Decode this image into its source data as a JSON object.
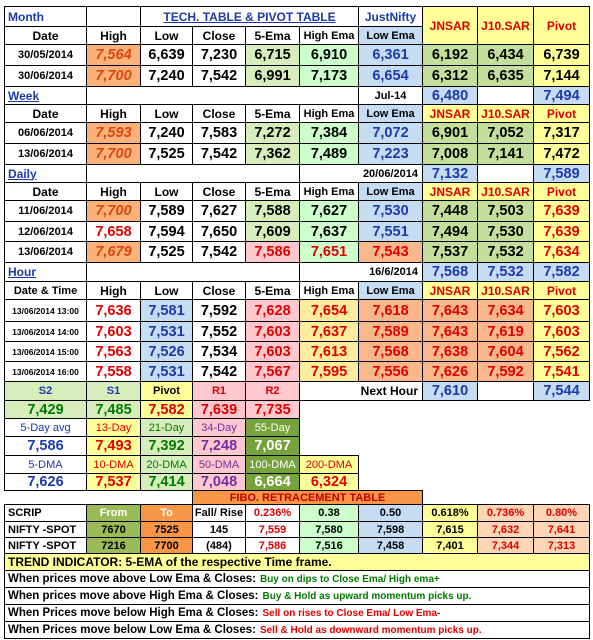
{
  "rows": [
    [
      "Month",
      "TECH. TABLE  &  PIVOT TABLE",
      "JustNifty",
      "JNSAR",
      "J10.SAR",
      "Pivot"
    ],
    [
      "Date",
      "High",
      "Low",
      "Close",
      "5-Ema",
      "High Ema",
      "Low Ema"
    ],
    [
      "30/05/2014",
      "7,564",
      "6,639",
      "7,230",
      "6,715",
      "6,910",
      "6,361",
      "6,192",
      "6,434",
      "6,739"
    ],
    [
      "30/06/2014",
      "7,700",
      "7,240",
      "7,542",
      "6,991",
      "7,173",
      "6,654",
      "6,312",
      "6,635",
      "7,144"
    ],
    [
      "Week",
      "Jul-14",
      "6,480",
      "7,494"
    ],
    [
      "Date",
      "High",
      "Low",
      "Close",
      "5-Ema",
      "High Ema",
      "Low Ema",
      "JNSAR",
      "J10.SAR",
      "Pivot"
    ],
    [
      "06/06/2014",
      "7,593",
      "7,240",
      "7,583",
      "7,272",
      "7,384",
      "7,072",
      "6,901",
      "7,052",
      "7,317"
    ],
    [
      "13/06/2014",
      "7,700",
      "7,525",
      "7,542",
      "7,362",
      "7,489",
      "7,223",
      "7,008",
      "7,141",
      "7,472"
    ],
    [
      "Daily",
      "20/06/2014",
      "7,132",
      "7,589"
    ],
    [
      "Date",
      "High",
      "Low",
      "Close",
      "5-Ema",
      "High Ema",
      "Low Ema",
      "JNSAR",
      "J10.SAR",
      "Pivot"
    ],
    [
      "11/06/2014",
      "7,700",
      "7,589",
      "7,627",
      "7,588",
      "7,627",
      "7,530",
      "7,448",
      "7,503",
      "7,639"
    ],
    [
      "12/06/2014",
      "7,658",
      "7,594",
      "7,650",
      "7,609",
      "7,637",
      "7,551",
      "7,494",
      "7,530",
      "7,639"
    ],
    [
      "13/06/2014",
      "7,679",
      "7,525",
      "7,542",
      "7,586",
      "7,651",
      "7,543",
      "7,537",
      "7,532",
      "7,634"
    ],
    [
      "Hour",
      "16/6/2014",
      "7,568",
      "7,532",
      "7,582"
    ],
    [
      "Date & Time",
      "High",
      "Low",
      "Close",
      "5-Ema",
      "High Ema",
      "Low Ema",
      "JNSAR",
      "J10.SAR",
      "Pivot"
    ],
    [
      "13/06/2014 13:00",
      "7,636",
      "7,581",
      "7,592",
      "7,628",
      "7,654",
      "7,618",
      "7,643",
      "7,634",
      "7,603"
    ],
    [
      "13/06/2014 14:00",
      "7,603",
      "7,531",
      "7,552",
      "7,603",
      "7,637",
      "7,589",
      "7,643",
      "7,619",
      "7,603"
    ],
    [
      "13/06/2014 15:00",
      "7,563",
      "7,526",
      "7,534",
      "7,603",
      "7,613",
      "7,568",
      "7,638",
      "7,604",
      "7,562"
    ],
    [
      "13/06/2014 16:00",
      "7,558",
      "7,531",
      "7,542",
      "7,567",
      "7,595",
      "7,556",
      "7,626",
      "7,592",
      "7,541"
    ],
    [
      "S2",
      "S1",
      "Pivot",
      "R1",
      "R2",
      "Next Hour",
      "7,610",
      "7,544"
    ],
    [
      "7,429",
      "7,485",
      "7,582",
      "7,639",
      "7,735"
    ],
    [
      "5-Day avg",
      "13-Day",
      "21-Day",
      "34-Day",
      "55-Day"
    ],
    [
      "7,586",
      "7,493",
      "7,392",
      "7,248",
      "7,067"
    ],
    [
      "5-DMA",
      "10-DMA",
      "20-DMA",
      "50-DMA",
      "100-DMA",
      "200-DMA"
    ],
    [
      "7,626",
      "7,537",
      "7,414",
      "7,048",
      "6,664",
      "6,324"
    ],
    [
      "FIBO. RETRACEMENT TABLE"
    ],
    [
      "SCRIP",
      "From",
      "To",
      "Fall/ Rise",
      "0.236%",
      "0.38",
      "0.50",
      "0.618%",
      "0.736%",
      "0.80%"
    ],
    [
      "NIFTY -SPOT",
      "7670",
      "7525",
      "145",
      "7,559",
      "7,580",
      "7,598",
      "7,615",
      "7,632",
      "7,641"
    ],
    [
      "NIFTY -SPOT",
      "7216",
      "7700",
      "(484)",
      "7,586",
      "7,516",
      "7,458",
      "7,401",
      "7,344",
      "7,313"
    ],
    [
      "TREND INDICATOR: 5-EMA of the respective Time frame."
    ],
    [
      "When prices move above Low Ema & Closes:",
      "Buy on dips to Close Ema/ High ema+"
    ],
    [
      "When prices move above High Ema & Closes:",
      "Buy & Hold as upward momentum picks up."
    ],
    [
      "When Prices move below High Ema & Closes:",
      "Sell on rises to Close Ema/ Low Ema-"
    ],
    [
      "When Prices move below Low Ema & Closes:",
      "Sell & Hold as downward momentum picks up."
    ]
  ]
}
